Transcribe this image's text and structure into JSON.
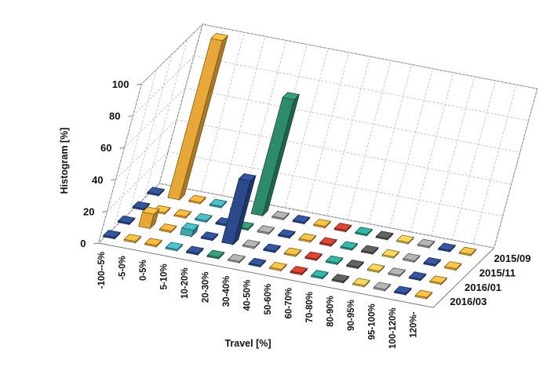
{
  "chart_data": {
    "type": "bar",
    "style": "3d-clustered-rows",
    "ylabel": "Histogram [%]",
    "xlabel": "Travel [%]",
    "ylim": [
      0,
      100
    ],
    "yticks": [
      0,
      20,
      40,
      60,
      80,
      100
    ],
    "grid": true,
    "categories": [
      "-100--5%",
      "-5-0%",
      "0-5%",
      "5-10%",
      "10-20%",
      "20-30%",
      "30-40%",
      "40-50%",
      "50-60%",
      "60-70%",
      "70-80%",
      "80-90%",
      "90-95%",
      "95-100%",
      "100-120%",
      "120%-"
    ],
    "category_colors": [
      "#2b4a8c",
      "#e8a838",
      "#c0392b",
      "#2a9d8f",
      "#555555",
      "#d9b84a",
      "#9a9a9a",
      "#2b4a8c",
      "#e8a838",
      "#c0392b",
      "#2a9d8f",
      "#555555",
      "#d9b84a",
      "#9a9a9a",
      "#2b4a8c",
      "#e8a838"
    ],
    "series": [
      {
        "name": "2016/03",
        "values": [
          0,
          0,
          0,
          0,
          0,
          0,
          0,
          0,
          0,
          0,
          0,
          0,
          0,
          0,
          0,
          0
        ]
      },
      {
        "name": "2016/01",
        "values": [
          0,
          9,
          0,
          4,
          0,
          40,
          0,
          0,
          0,
          0,
          0,
          0,
          0,
          0,
          0,
          0
        ]
      },
      {
        "name": "2015/11",
        "values": [
          0,
          0,
          0,
          0,
          0,
          0,
          0,
          0,
          0,
          0,
          0,
          0,
          0,
          0,
          0,
          0
        ]
      },
      {
        "name": "2015/09",
        "values": [
          0,
          100,
          0,
          0,
          0,
          73,
          0,
          0,
          0,
          0,
          0,
          0,
          0,
          0,
          0,
          0
        ]
      }
    ],
    "bar_colors": {
      "0-5%": "#f5a030",
      "20-30%": "#2d8a6a",
      "5-10%": "#3fa7b0",
      "10-20%": "#2b4a8c"
    },
    "extra_bars": [
      {
        "category": "20-30%",
        "series": "2016/01",
        "value": 40,
        "color": "#2b4a8c",
        "note_value_only": true
      }
    ]
  }
}
